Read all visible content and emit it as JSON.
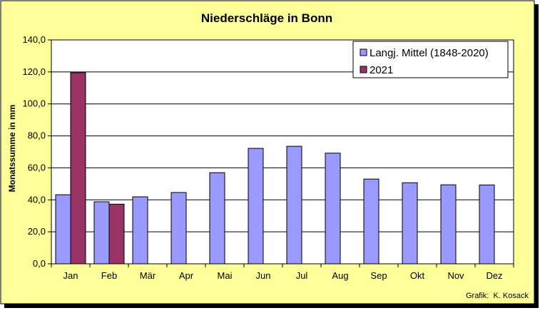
{
  "chart_data": {
    "type": "bar",
    "title": "Niederschläge in Bonn",
    "ylabel": "Monatssumme in mm",
    "xlabel": "",
    "credit": "Grafik:  K. Kosack",
    "categories": [
      "Jan",
      "Feb",
      "Mär",
      "Apr",
      "Mai",
      "Jun",
      "Jul",
      "Aug",
      "Sep",
      "Okt",
      "Nov",
      "Dez"
    ],
    "ylim": [
      0,
      140
    ],
    "yticks": [
      "0,0",
      "20,0",
      "40,0",
      "60,0",
      "80,0",
      "100,0",
      "120,0",
      "140,0"
    ],
    "grid": true,
    "legend_position": "top-right",
    "series": [
      {
        "name": "Langj. Mittel (1848-2020)",
        "color": "#9999ff",
        "values": [
          43.2,
          38.8,
          41.9,
          44.6,
          57.0,
          72.2,
          73.5,
          69.2,
          53.0,
          50.7,
          49.4,
          49.3
        ]
      },
      {
        "name": "2021",
        "color": "#993366",
        "values": [
          119.5,
          37.3,
          null,
          null,
          null,
          null,
          null,
          null,
          null,
          null,
          null,
          null
        ]
      }
    ]
  },
  "colors": {
    "background": "#ffff99",
    "plot_area": "#ffffff",
    "frame": "#000000"
  }
}
